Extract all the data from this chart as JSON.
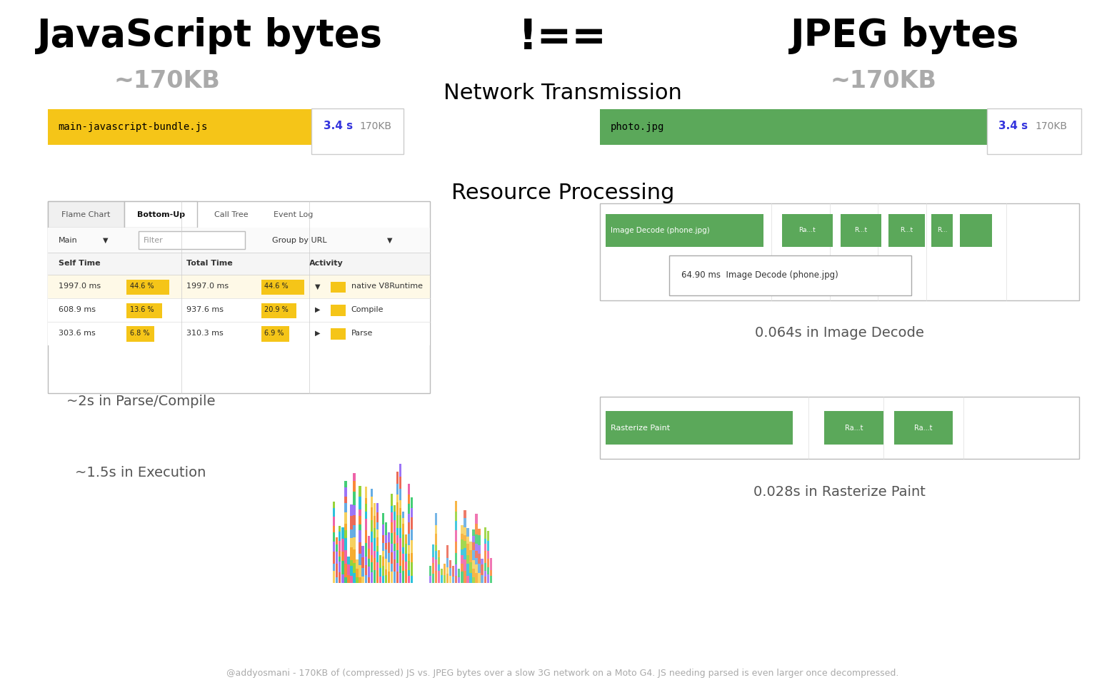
{
  "title_left": "JavaScript bytes",
  "title_not_equal": "!==",
  "title_right": "JPEG bytes",
  "subtitle_left": "~170KB",
  "subtitle_right": "~170KB",
  "section1_title": "Network Transmission",
  "section2_title": "Resource Processing",
  "js_bar_label": "main-javascript-bundle.js",
  "js_bar_time": "3.4 s",
  "js_bar_size": "170KB",
  "jpeg_bar_label": "photo.jpg",
  "jpeg_bar_time": "3.4 s",
  "jpeg_bar_size": "170KB",
  "js_bar_color": "#F5C518",
  "jpeg_bar_color": "#5BA85A",
  "parse_compile_text": "~2s in Parse/Compile",
  "execution_text": "~1.5s in Execution",
  "image_decode_text": "0.064s in Image Decode",
  "rasterize_text": "0.028s in Rasterize Paint",
  "footer_text": "@addyosmani - 170KB of (compressed) JS vs. JPEG bytes over a slow 3G network on a Moto G4. JS needing parsed is even larger once decompressed.",
  "bg_color": "#ffffff",
  "green_bar_color": "#5BA85A",
  "yellow_highlight": "#F5C518"
}
